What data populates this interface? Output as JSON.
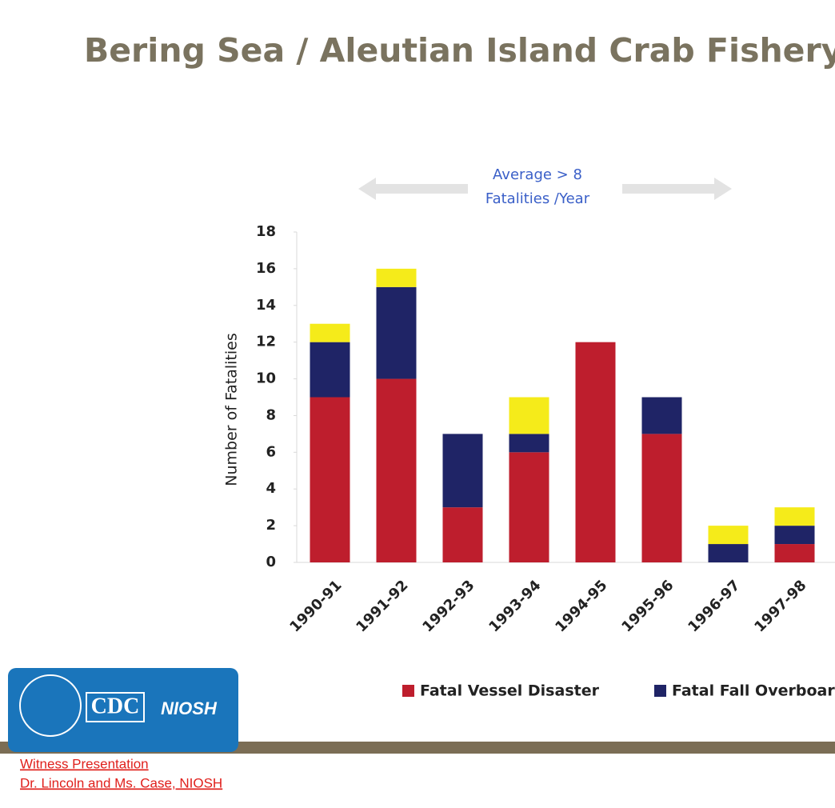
{
  "chart_data": {
    "type": "stacked_bar",
    "title": "Bering Sea / Aleutian Island Crab Fishery",
    "annotation": [
      "Average > 8",
      "Fatalities /Year"
    ],
    "y_label": "Number of Fatalities",
    "categories": [
      "1990-91",
      "1991-92",
      "1992-93",
      "1993-94",
      "1994-95",
      "1995-96",
      "1996-97",
      "1997-98"
    ],
    "series": [
      {
        "name": "Fatal Vessel Disaster",
        "color": "#be1e2d",
        "values": [
          9,
          10,
          3,
          6,
          12,
          7,
          0,
          1
        ]
      },
      {
        "name": "Fatal Fall Overboard",
        "color": "#1f2466",
        "values": [
          3,
          5,
          4,
          1,
          0,
          2,
          1,
          1
        ]
      },
      {
        "name": null,
        "color": "#f5eb1a",
        "values": [
          1,
          1,
          0,
          2,
          0,
          0,
          1,
          1
        ]
      }
    ],
    "ylim": [
      0,
      18
    ],
    "yticks": [
      0,
      2,
      4,
      6,
      8,
      10,
      12,
      14,
      16,
      18
    ],
    "grid": false
  },
  "logo": {
    "cdc": "CDC",
    "niosh": "NIOSH"
  },
  "footer": [
    "Witness Presentation",
    "Dr. Lincoln and Ms. Case, NIOSH"
  ]
}
